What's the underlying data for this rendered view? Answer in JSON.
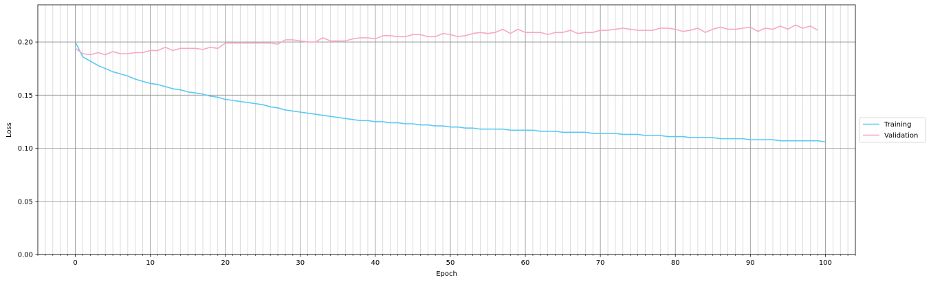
{
  "chart_data": {
    "type": "line",
    "title": "",
    "xlabel": "Epoch",
    "ylabel": "Loss",
    "xlim": [
      -5,
      104
    ],
    "ylim": [
      0.0,
      0.235
    ],
    "xticks": [
      0,
      10,
      20,
      30,
      40,
      50,
      60,
      70,
      80,
      90,
      100
    ],
    "xtick_labels": [
      "0",
      "10",
      "20",
      "30",
      "40",
      "50",
      "60",
      "70",
      "80",
      "90",
      "100"
    ],
    "yticks": [
      0.0,
      0.05,
      0.1,
      0.15,
      0.2
    ],
    "ytick_labels": [
      "0.00",
      "0.05",
      "0.10",
      "0.15",
      "0.20"
    ],
    "grid": {
      "major": true,
      "minor_x": true
    },
    "legend_position": "right",
    "series": [
      {
        "name": "Training",
        "color": "#5bc8f5",
        "x_start": 0,
        "values": [
          0.2,
          0.186,
          0.182,
          0.178,
          0.175,
          0.172,
          0.17,
          0.168,
          0.165,
          0.163,
          0.161,
          0.16,
          0.158,
          0.156,
          0.155,
          0.153,
          0.152,
          0.151,
          0.149,
          0.148,
          0.146,
          0.145,
          0.144,
          0.143,
          0.142,
          0.141,
          0.139,
          0.138,
          0.136,
          0.135,
          0.134,
          0.133,
          0.132,
          0.131,
          0.13,
          0.129,
          0.128,
          0.127,
          0.126,
          0.126,
          0.125,
          0.125,
          0.124,
          0.124,
          0.123,
          0.123,
          0.122,
          0.122,
          0.121,
          0.121,
          0.12,
          0.12,
          0.119,
          0.119,
          0.118,
          0.118,
          0.118,
          0.118,
          0.117,
          0.117,
          0.117,
          0.117,
          0.116,
          0.116,
          0.116,
          0.115,
          0.115,
          0.115,
          0.115,
          0.114,
          0.114,
          0.114,
          0.114,
          0.113,
          0.113,
          0.113,
          0.112,
          0.112,
          0.112,
          0.111,
          0.111,
          0.111,
          0.11,
          0.11,
          0.11,
          0.11,
          0.109,
          0.109,
          0.109,
          0.109,
          0.108,
          0.108,
          0.108,
          0.108,
          0.107,
          0.107,
          0.107,
          0.107,
          0.107,
          0.107,
          0.106
        ]
      },
      {
        "name": "Validation",
        "color": "#f7a8bf",
        "x_start": 0,
        "values": [
          0.194,
          0.189,
          0.188,
          0.19,
          0.188,
          0.191,
          0.189,
          0.189,
          0.19,
          0.19,
          0.192,
          0.192,
          0.195,
          0.192,
          0.194,
          0.194,
          0.194,
          0.193,
          0.195,
          0.194,
          0.199,
          0.199,
          0.199,
          0.199,
          0.199,
          0.199,
          0.199,
          0.198,
          0.202,
          0.202,
          0.201,
          0.2,
          0.2,
          0.204,
          0.201,
          0.201,
          0.201,
          0.203,
          0.204,
          0.204,
          0.203,
          0.206,
          0.206,
          0.205,
          0.205,
          0.207,
          0.207,
          0.205,
          0.205,
          0.208,
          0.207,
          0.205,
          0.206,
          0.208,
          0.209,
          0.208,
          0.209,
          0.212,
          0.208,
          0.212,
          0.209,
          0.209,
          0.209,
          0.207,
          0.209,
          0.209,
          0.211,
          0.208,
          0.209,
          0.209,
          0.211,
          0.211,
          0.212,
          0.213,
          0.212,
          0.211,
          0.211,
          0.211,
          0.213,
          0.213,
          0.212,
          0.21,
          0.211,
          0.213,
          0.209,
          0.212,
          0.214,
          0.212,
          0.212,
          0.213,
          0.214,
          0.21,
          0.213,
          0.212,
          0.215,
          0.212,
          0.216,
          0.213,
          0.215,
          0.211
        ]
      }
    ]
  }
}
